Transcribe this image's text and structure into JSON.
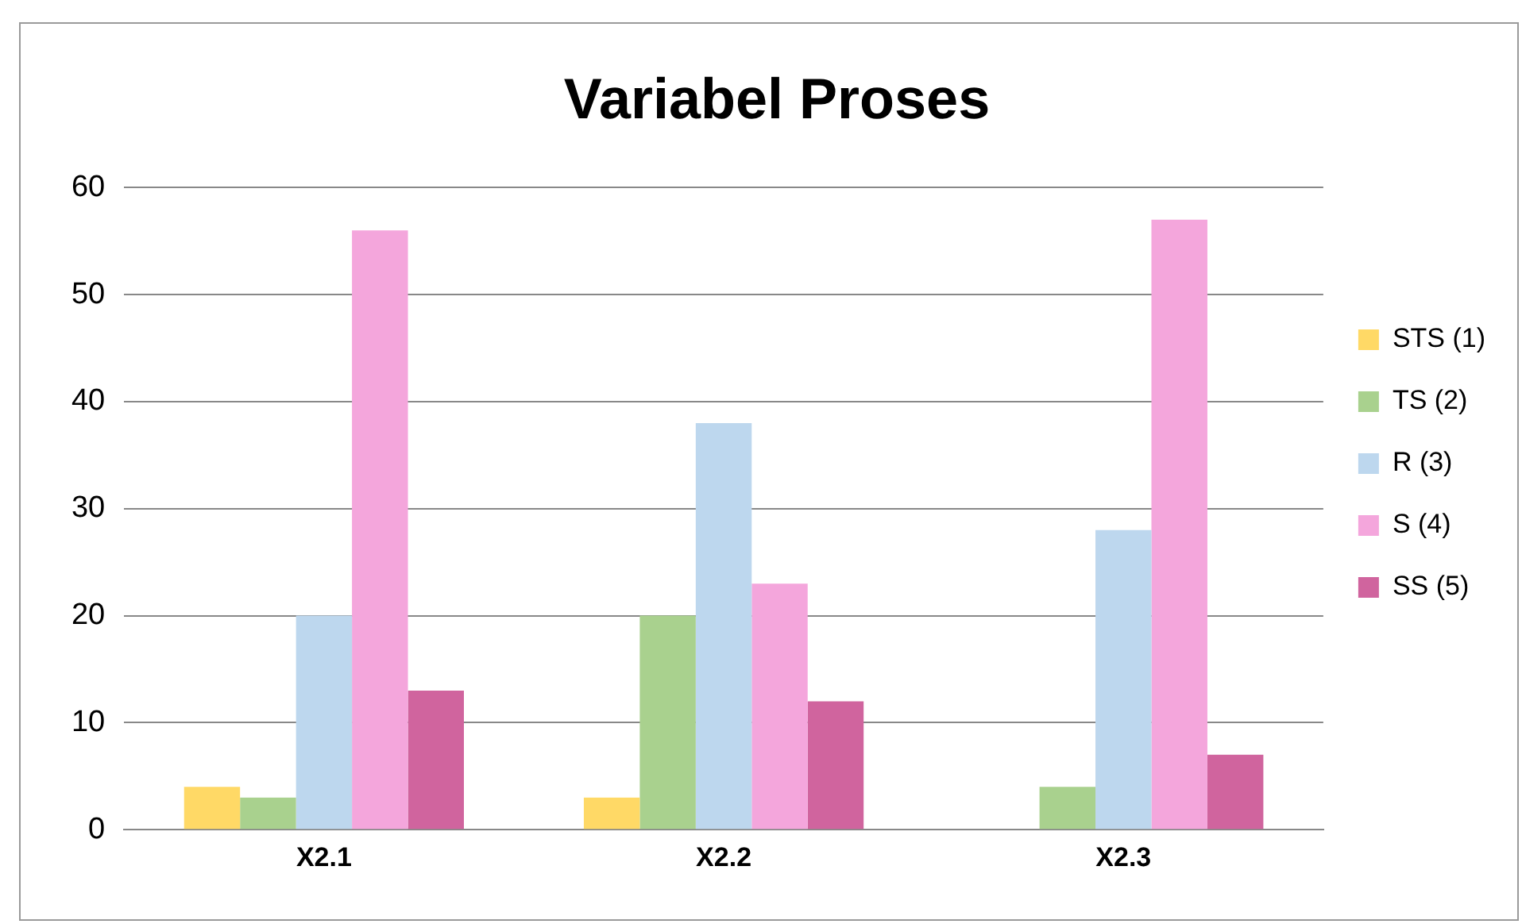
{
  "chart_data": {
    "type": "bar",
    "title": "Variabel Proses",
    "categories": [
      "X2.1",
      "X2.2",
      "X2.3"
    ],
    "series": [
      {
        "name": "STS (1)",
        "color": "#ffd966",
        "values": [
          4,
          3,
          0
        ]
      },
      {
        "name": "TS (2)",
        "color": "#a9d18e",
        "values": [
          3,
          20,
          4
        ]
      },
      {
        "name": "R (3)",
        "color": "#bdd7ee",
        "values": [
          20,
          38,
          28
        ]
      },
      {
        "name": "S (4)",
        "color": "#f4a6dc",
        "values": [
          56,
          23,
          57
        ]
      },
      {
        "name": "SS (5)",
        "color": "#d0649e",
        "values": [
          13,
          12,
          7
        ]
      }
    ],
    "ylim": [
      0,
      60
    ],
    "yticks": [
      0,
      10,
      20,
      30,
      40,
      50,
      60
    ],
    "grid": "y",
    "legend": "right"
  }
}
